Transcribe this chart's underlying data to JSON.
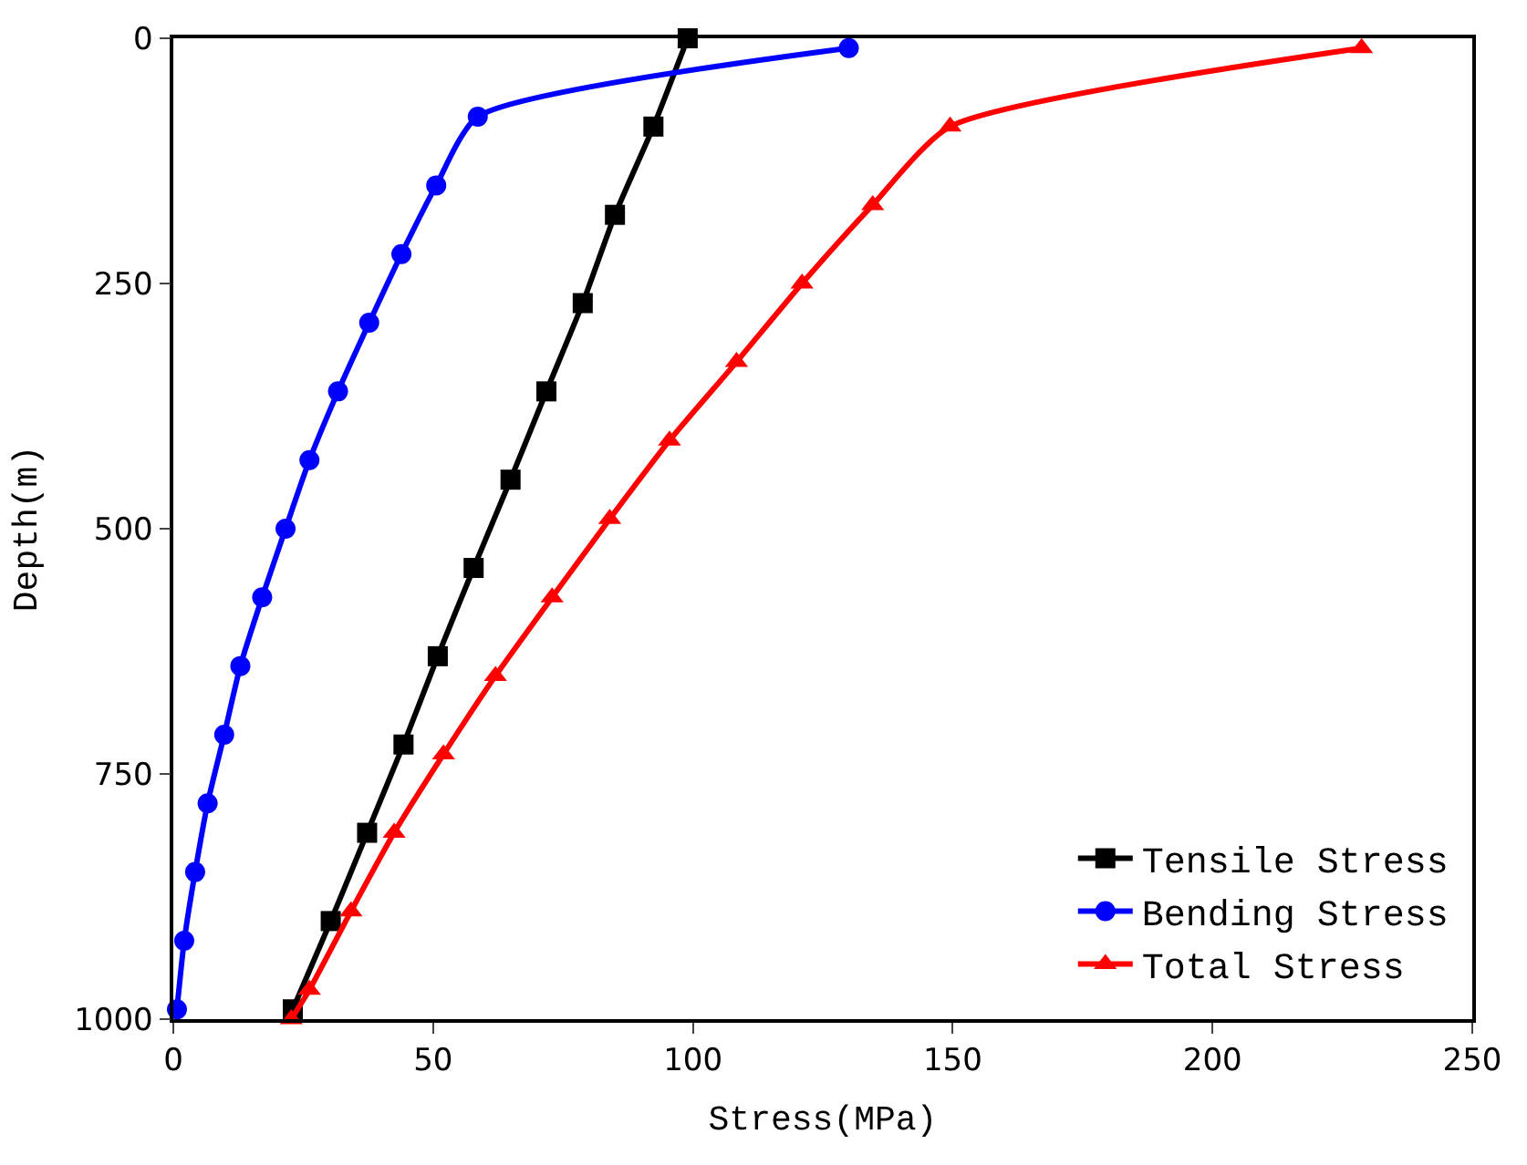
{
  "chart_data": {
    "type": "line",
    "xlabel": "Stress(MPa)",
    "ylabel": "Depth(m)",
    "xlim": [
      0,
      250
    ],
    "xticks": [
      0,
      50,
      100,
      150,
      200,
      250
    ],
    "ylim": [
      1000,
      0
    ],
    "yticks": [
      0,
      250,
      500,
      750,
      1000
    ],
    "legend": "bottom right",
    "series": [
      {
        "name": "Tensile Stress",
        "color": "#000000",
        "marker": "square",
        "x": [
          99,
          92.4,
          85,
          78.8,
          71.8,
          64.9,
          57.8,
          50.9,
          44.3,
          37.3,
          30.3,
          23
        ],
        "values": [
          0,
          90,
          180,
          270,
          360,
          450,
          540,
          630,
          720,
          810,
          900,
          990
        ]
      },
      {
        "name": "Bending Stress",
        "color": "#0000ff",
        "marker": "circle",
        "x": [
          130,
          58.6,
          50.6,
          43.9,
          37.7,
          31.7,
          26.2,
          21.6,
          17.1,
          12.9,
          9.8,
          6.6,
          4.2,
          2.1,
          0.7
        ],
        "values": [
          10,
          80,
          150,
          220,
          290,
          360,
          430,
          500,
          570,
          640,
          710,
          780,
          850,
          920,
          990
        ]
      },
      {
        "name": "Total Stress",
        "color": "#ff0000",
        "marker": "triangle",
        "x": [
          228.7,
          149.5,
          134.6,
          121,
          108.4,
          95.5,
          84,
          72.9,
          62,
          52,
          42.5,
          34.2,
          26.2,
          22.7
        ],
        "values": [
          10,
          90,
          170,
          250,
          330,
          410,
          490,
          570,
          650,
          730,
          810,
          890,
          970,
          1000
        ]
      }
    ]
  }
}
